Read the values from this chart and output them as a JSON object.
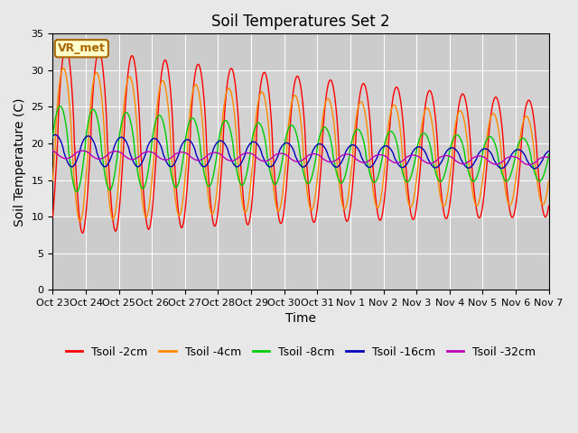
{
  "title": "Soil Temperatures Set 2",
  "xlabel": "Time",
  "ylabel": "Soil Temperature (C)",
  "ylim": [
    0,
    35
  ],
  "yticks": [
    0,
    5,
    10,
    15,
    20,
    25,
    30,
    35
  ],
  "xtick_labels": [
    "Oct 23",
    "Oct 24",
    "Oct 25",
    "Oct 26",
    "Oct 27",
    "Oct 28",
    "Oct 29",
    "Oct 30",
    "Oct 31",
    "Nov 1",
    "Nov 2",
    "Nov 3",
    "Nov 4",
    "Nov 5",
    "Nov 6",
    "Nov 7"
  ],
  "series": [
    {
      "label": "Tsoil -2cm",
      "color": "#ff0000"
    },
    {
      "label": "Tsoil -4cm",
      "color": "#ff8800"
    },
    {
      "label": "Tsoil -8cm",
      "color": "#00cc00"
    },
    {
      "label": "Tsoil -16cm",
      "color": "#0000bb"
    },
    {
      "label": "Tsoil -32cm",
      "color": "#bb00bb"
    }
  ],
  "annotation_text": "VR_met",
  "annotation_fg": "#aa6600",
  "annotation_bg": "#ffffcc",
  "fig_bg": "#e8e8e8",
  "plot_bg": "#cccccc",
  "grid_color": "#ffffff",
  "title_fontsize": 12,
  "axis_label_fontsize": 10,
  "tick_fontsize": 8,
  "legend_fontsize": 9
}
